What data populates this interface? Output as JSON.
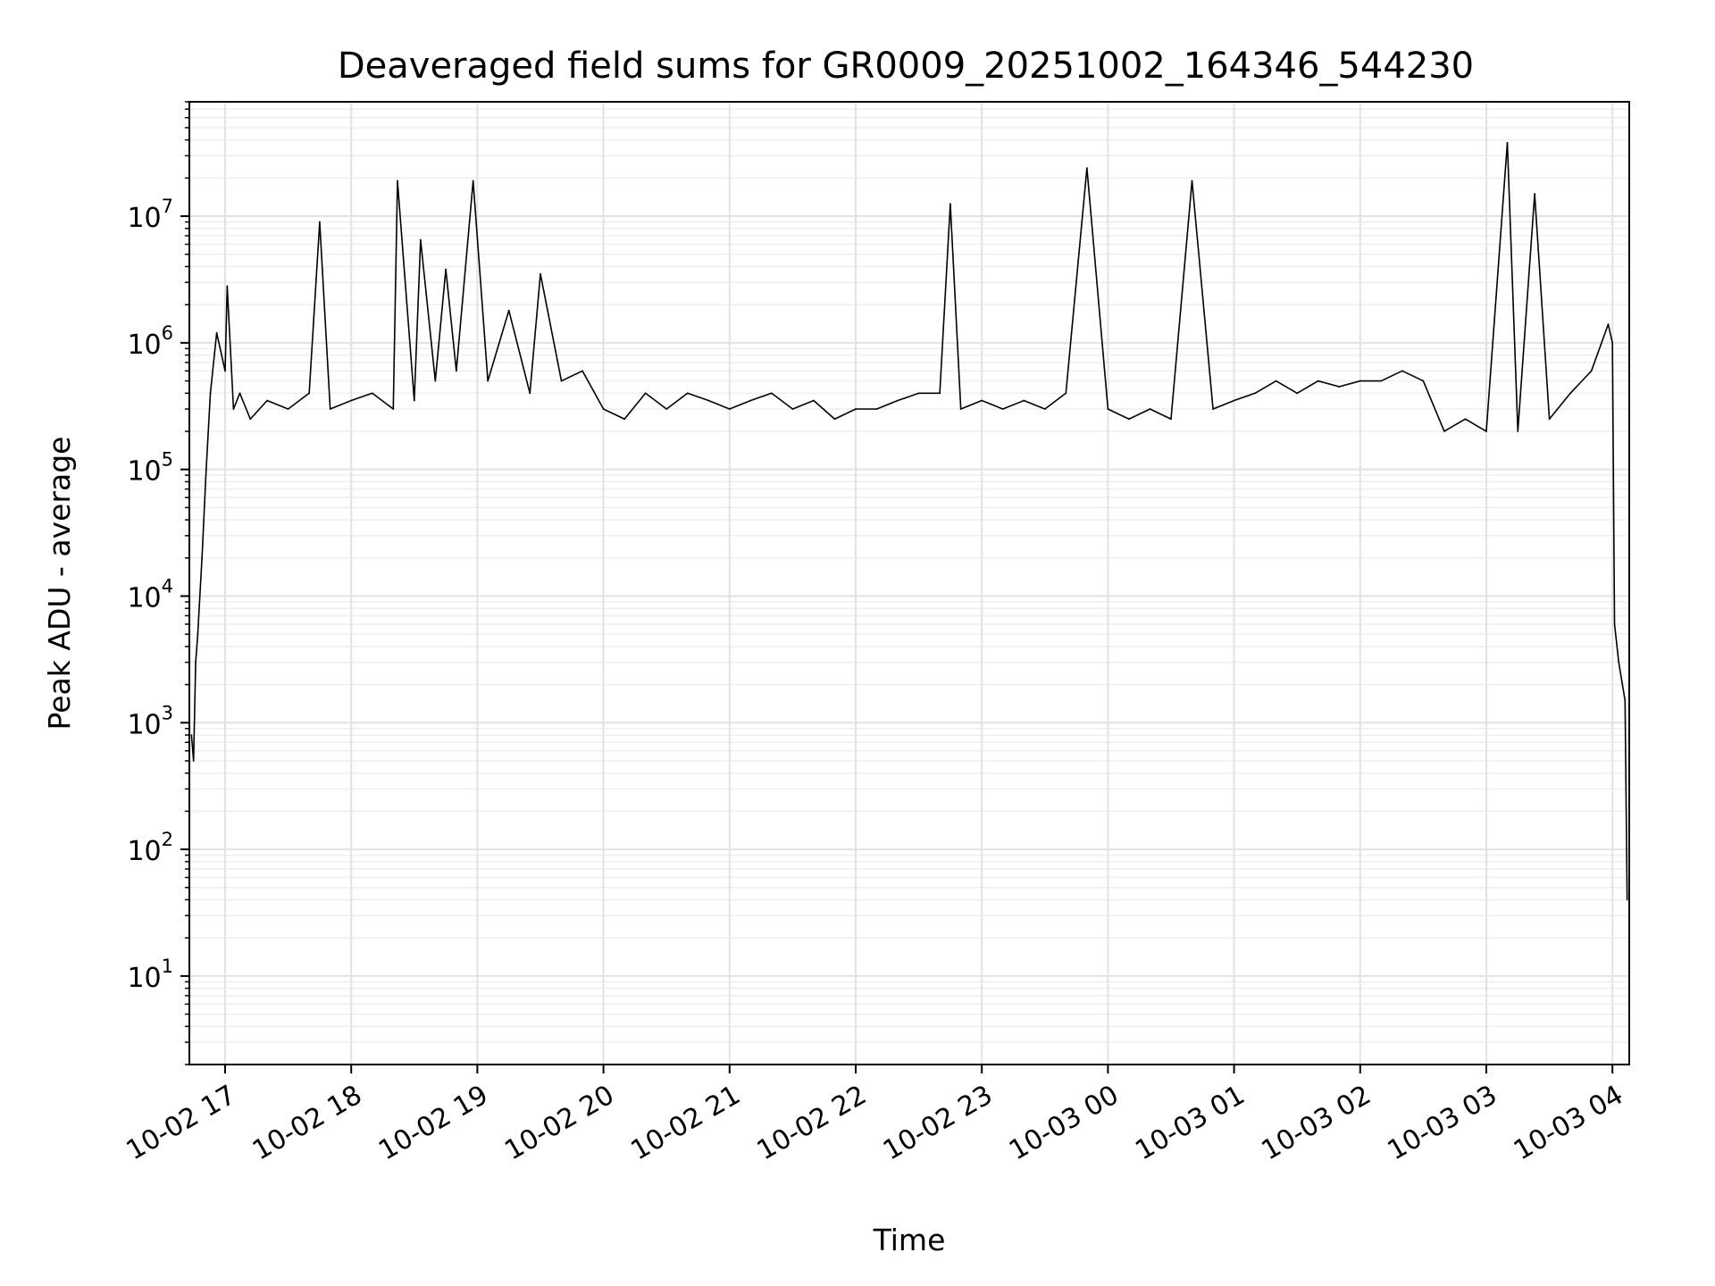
{
  "chart_data": {
    "type": "line",
    "title": "Deaveraged field sums for GR0009_20251002_164346_544230",
    "xlabel": "Time",
    "ylabel": "Peak ADU - average",
    "yscale": "log",
    "grid": true,
    "legend": "none",
    "line_color": "#000000",
    "xlim": [
      "2025-10-02 16:43",
      "2025-10-03 04:08"
    ],
    "ylim": [
      2,
      80000000
    ],
    "x_ticks": [
      {
        "value": "2025-10-02 17:00",
        "label": "10-02 17"
      },
      {
        "value": "2025-10-02 18:00",
        "label": "10-02 18"
      },
      {
        "value": "2025-10-02 19:00",
        "label": "10-02 19"
      },
      {
        "value": "2025-10-02 20:00",
        "label": "10-02 20"
      },
      {
        "value": "2025-10-02 21:00",
        "label": "10-02 21"
      },
      {
        "value": "2025-10-02 22:00",
        "label": "10-02 22"
      },
      {
        "value": "2025-10-02 23:00",
        "label": "10-02 23"
      },
      {
        "value": "2025-10-03 00:00",
        "label": "10-03 00"
      },
      {
        "value": "2025-10-03 01:00",
        "label": "10-03 01"
      },
      {
        "value": "2025-10-03 02:00",
        "label": "10-03 02"
      },
      {
        "value": "2025-10-03 03:00",
        "label": "10-03 03"
      },
      {
        "value": "2025-10-03 04:00",
        "label": "10-03 04"
      }
    ],
    "y_ticks": [
      {
        "value": 10,
        "base": "10",
        "exp": "1"
      },
      {
        "value": 100,
        "base": "10",
        "exp": "2"
      },
      {
        "value": 1000,
        "base": "10",
        "exp": "3"
      },
      {
        "value": 10000,
        "base": "10",
        "exp": "4"
      },
      {
        "value": 100000,
        "base": "10",
        "exp": "5"
      },
      {
        "value": 1000000,
        "base": "10",
        "exp": "6"
      },
      {
        "value": 10000000,
        "base": "10",
        "exp": "7"
      }
    ],
    "series": [
      {
        "values": [
          [
            "2025-10-02 16:44",
            800
          ],
          [
            "2025-10-02 16:45",
            500
          ],
          [
            "2025-10-02 16:46",
            3000
          ],
          [
            "2025-10-02 16:47",
            5000
          ],
          [
            "2025-10-02 16:49",
            20000
          ],
          [
            "2025-10-02 16:51",
            100000
          ],
          [
            "2025-10-02 16:53",
            400000
          ],
          [
            "2025-10-02 16:56",
            1200000
          ],
          [
            "2025-10-02 17:00",
            600000
          ],
          [
            "2025-10-02 17:01",
            2800000
          ],
          [
            "2025-10-02 17:04",
            300000
          ],
          [
            "2025-10-02 17:07",
            400000
          ],
          [
            "2025-10-02 17:12",
            250000
          ],
          [
            "2025-10-02 17:20",
            350000
          ],
          [
            "2025-10-02 17:30",
            300000
          ],
          [
            "2025-10-02 17:40",
            400000
          ],
          [
            "2025-10-02 17:45",
            9000000
          ],
          [
            "2025-10-02 17:50",
            300000
          ],
          [
            "2025-10-02 18:00",
            350000
          ],
          [
            "2025-10-02 18:10",
            400000
          ],
          [
            "2025-10-02 18:20",
            300000
          ],
          [
            "2025-10-02 18:22",
            19000000
          ],
          [
            "2025-10-02 18:30",
            350000
          ],
          [
            "2025-10-02 18:33",
            6500000
          ],
          [
            "2025-10-02 18:40",
            500000
          ],
          [
            "2025-10-02 18:45",
            3800000
          ],
          [
            "2025-10-02 18:50",
            600000
          ],
          [
            "2025-10-02 18:58",
            19000000
          ],
          [
            "2025-10-02 19:05",
            500000
          ],
          [
            "2025-10-02 19:15",
            1800000
          ],
          [
            "2025-10-02 19:25",
            400000
          ],
          [
            "2025-10-02 19:30",
            3500000
          ],
          [
            "2025-10-02 19:40",
            500000
          ],
          [
            "2025-10-02 19:50",
            600000
          ],
          [
            "2025-10-02 20:00",
            300000
          ],
          [
            "2025-10-02 20:10",
            250000
          ],
          [
            "2025-10-02 20:20",
            400000
          ],
          [
            "2025-10-02 20:30",
            300000
          ],
          [
            "2025-10-02 20:40",
            400000
          ],
          [
            "2025-10-02 20:50",
            350000
          ],
          [
            "2025-10-02 21:00",
            300000
          ],
          [
            "2025-10-02 21:10",
            350000
          ],
          [
            "2025-10-02 21:20",
            400000
          ],
          [
            "2025-10-02 21:30",
            300000
          ],
          [
            "2025-10-02 21:40",
            350000
          ],
          [
            "2025-10-02 21:50",
            250000
          ],
          [
            "2025-10-02 22:00",
            300000
          ],
          [
            "2025-10-02 22:10",
            300000
          ],
          [
            "2025-10-02 22:20",
            350000
          ],
          [
            "2025-10-02 22:30",
            400000
          ],
          [
            "2025-10-02 22:40",
            400000
          ],
          [
            "2025-10-02 22:45",
            12500000
          ],
          [
            "2025-10-02 22:50",
            300000
          ],
          [
            "2025-10-02 23:00",
            350000
          ],
          [
            "2025-10-02 23:10",
            300000
          ],
          [
            "2025-10-02 23:20",
            350000
          ],
          [
            "2025-10-02 23:30",
            300000
          ],
          [
            "2025-10-02 23:40",
            400000
          ],
          [
            "2025-10-02 23:50",
            24000000
          ],
          [
            "2025-10-03 00:00",
            300000
          ],
          [
            "2025-10-03 00:10",
            250000
          ],
          [
            "2025-10-03 00:20",
            300000
          ],
          [
            "2025-10-03 00:30",
            250000
          ],
          [
            "2025-10-03 00:40",
            19000000
          ],
          [
            "2025-10-03 00:50",
            300000
          ],
          [
            "2025-10-03 01:00",
            350000
          ],
          [
            "2025-10-03 01:10",
            400000
          ],
          [
            "2025-10-03 01:20",
            500000
          ],
          [
            "2025-10-03 01:30",
            400000
          ],
          [
            "2025-10-03 01:40",
            500000
          ],
          [
            "2025-10-03 01:50",
            450000
          ],
          [
            "2025-10-03 02:00",
            500000
          ],
          [
            "2025-10-03 02:10",
            500000
          ],
          [
            "2025-10-03 02:20",
            600000
          ],
          [
            "2025-10-03 02:30",
            500000
          ],
          [
            "2025-10-03 02:40",
            200000
          ],
          [
            "2025-10-03 02:50",
            250000
          ],
          [
            "2025-10-03 03:00",
            200000
          ],
          [
            "2025-10-03 03:10",
            38000000
          ],
          [
            "2025-10-03 03:15",
            200000
          ],
          [
            "2025-10-03 03:23",
            15000000
          ],
          [
            "2025-10-03 03:30",
            250000
          ],
          [
            "2025-10-03 03:40",
            400000
          ],
          [
            "2025-10-03 03:50",
            600000
          ],
          [
            "2025-10-03 03:58",
            1400000
          ],
          [
            "2025-10-03 04:00",
            1000000
          ],
          [
            "2025-10-03 04:01",
            6000
          ],
          [
            "2025-10-03 04:03",
            3000
          ],
          [
            "2025-10-03 04:06",
            1500
          ],
          [
            "2025-10-03 04:07",
            40
          ]
        ]
      }
    ]
  }
}
